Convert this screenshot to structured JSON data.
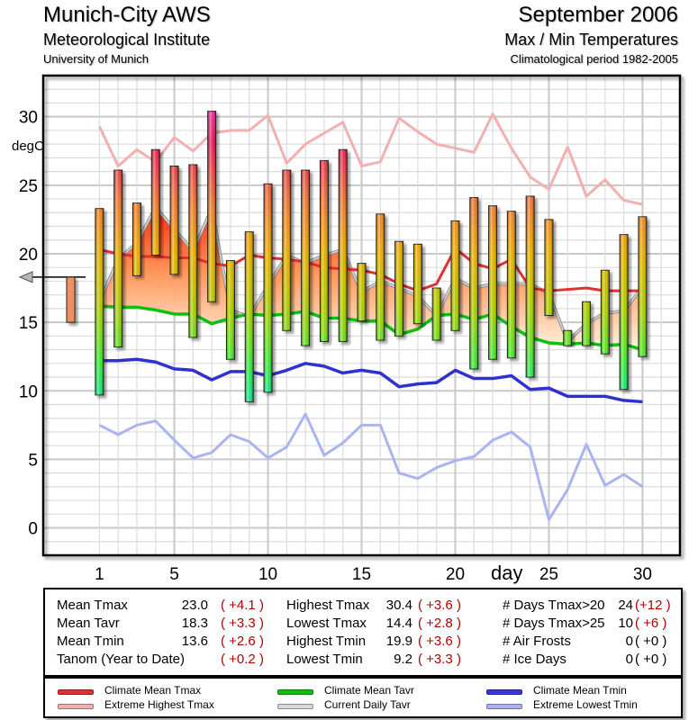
{
  "header": {
    "station": "Munich-City AWS",
    "institute": "Meteorological Institute",
    "university": "University of Munich",
    "period": "September 2006",
    "subject": "Max / Min Temperatures",
    "climate_period": "Climatological period 1982-2005"
  },
  "chart_data": {
    "type": "bar",
    "title": "Max / Min Temperatures",
    "xlabel": "day",
    "ylabel": "degC",
    "ylim": [
      -2,
      33
    ],
    "xlim": [
      -2,
      32
    ],
    "yticks": [
      "0",
      "5",
      "10",
      "15",
      "20",
      "25",
      "30"
    ],
    "xticks": [
      "1",
      "5",
      "10",
      "15",
      "20",
      "25",
      "30"
    ],
    "grid": true,
    "days": [
      1,
      2,
      3,
      4,
      5,
      6,
      7,
      8,
      9,
      10,
      11,
      12,
      13,
      14,
      15,
      16,
      17,
      18,
      19,
      20,
      21,
      22,
      23,
      24,
      25,
      26,
      27,
      28,
      29,
      30
    ],
    "tmax": [
      23.3,
      26.1,
      23.7,
      27.6,
      26.4,
      26.5,
      30.4,
      19.5,
      21.6,
      25.1,
      26.1,
      26.1,
      26.8,
      27.6,
      19.3,
      22.9,
      20.9,
      20.7,
      17.5,
      22.4,
      24.1,
      23.5,
      23.1,
      24.2,
      22.5,
      14.4,
      16.5,
      18.8,
      21.4,
      22.7
    ],
    "tmin": [
      9.7,
      13.2,
      18.4,
      19.9,
      18.5,
      13.9,
      16.5,
      12.3,
      9.2,
      9.9,
      14.4,
      13.3,
      13.6,
      13.6,
      15.1,
      13.7,
      14.0,
      14.9,
      13.7,
      14.4,
      11.6,
      12.3,
      12.4,
      11.0,
      15.5,
      13.3,
      13.3,
      12.7,
      10.1,
      12.5
    ],
    "series": [
      {
        "name": "Climate Mean Tmax",
        "color": "#e03030",
        "values": [
          20.3,
          20.0,
          19.8,
          19.8,
          19.7,
          19.7,
          19.3,
          19.1,
          19.9,
          19.7,
          19.6,
          19.4,
          19.0,
          18.9,
          18.8,
          18.5,
          17.8,
          17.3,
          17.8,
          20.4,
          19.3,
          18.9,
          19.6,
          17.5,
          17.3,
          17.4,
          17.5,
          17.3,
          17.3,
          17.3
        ]
      },
      {
        "name": "Extreme Highest Tmax",
        "color": "#f2b0b0",
        "values": [
          29.3,
          26.4,
          27.6,
          26.7,
          28.5,
          27.5,
          28.8,
          29.0,
          29.0,
          30.1,
          26.6,
          28.0,
          28.8,
          29.6,
          26.4,
          26.7,
          29.9,
          28.9,
          28.0,
          27.7,
          27.4,
          30.2,
          27.7,
          25.6,
          24.7,
          27.8,
          24.2,
          25.4,
          23.9,
          23.6
        ]
      },
      {
        "name": "Climate Mean Tavr",
        "color": "#10c010",
        "values": [
          16.2,
          16.1,
          16.1,
          15.9,
          15.6,
          15.6,
          14.9,
          15.3,
          15.6,
          15.5,
          15.6,
          15.8,
          15.3,
          15.3,
          15.1,
          15.1,
          14.1,
          14.5,
          15.5,
          15.6,
          15.2,
          15.6,
          14.7,
          13.9,
          13.5,
          13.4,
          13.5,
          13.3,
          13.4,
          13.0
        ]
      },
      {
        "name": "Current Daily Tavr",
        "color": "#d0d0d0",
        "values": [
          16.5,
          19.6,
          20.8,
          23.4,
          21.8,
          20.2,
          23.3,
          15.9,
          15.4,
          17.7,
          19.9,
          19.3,
          19.9,
          20.3,
          17.2,
          18.0,
          17.5,
          16.9,
          15.5,
          18.2,
          17.5,
          17.8,
          17.8,
          17.8,
          17.1,
          13.6,
          14.9,
          15.7,
          15.8,
          17.6
        ]
      },
      {
        "name": "Climate Mean Tmin",
        "color": "#3030d0",
        "values": [
          12.2,
          12.2,
          12.3,
          12.1,
          11.6,
          11.5,
          10.8,
          11.4,
          11.4,
          11.1,
          11.5,
          12.0,
          11.8,
          11.3,
          11.5,
          11.3,
          10.3,
          10.5,
          10.6,
          11.5,
          10.9,
          10.9,
          11.1,
          10.1,
          10.2,
          9.6,
          9.6,
          9.6,
          9.3,
          9.2
        ]
      },
      {
        "name": "Extreme Lowest Tmin",
        "color": "#aab4f0",
        "values": [
          7.5,
          6.8,
          7.5,
          7.8,
          6.4,
          5.1,
          5.5,
          6.8,
          6.3,
          5.1,
          5.9,
          8.3,
          5.3,
          6.2,
          7.5,
          7.5,
          4.0,
          3.6,
          4.4,
          4.9,
          5.2,
          6.4,
          7.0,
          5.9,
          0.6,
          2.8,
          6.1,
          3.1,
          3.9,
          3.0
        ]
      }
    ],
    "month_summary_bar": {
      "top": 18.3,
      "bottom": 15.0
    },
    "annotations": [
      "degC"
    ]
  },
  "stats": {
    "col1": [
      {
        "label": "Mean Tmax",
        "value": "23.0",
        "anom": "( +4.1 )"
      },
      {
        "label": "Mean Tavr",
        "value": "18.3",
        "anom": "( +3.3 )"
      },
      {
        "label": "Mean Tmin",
        "value": "13.6",
        "anom": "( +2.6 )"
      },
      {
        "label": "Tanom (Year to Date)",
        "value": "",
        "anom": "( +0.2 )"
      }
    ],
    "col2": [
      {
        "label": "Highest Tmax",
        "value": "30.4",
        "anom": "( +3.6 )"
      },
      {
        "label": "Lowest Tmax",
        "value": "14.4",
        "anom": "( +2.8 )"
      },
      {
        "label": "Highest Tmin",
        "value": "19.9",
        "anom": "( +3.6 )"
      },
      {
        "label": "Lowest Tmin",
        "value": "9.2",
        "anom": "( +3.3 )"
      }
    ],
    "col3": [
      {
        "label": "# Days Tmax>20",
        "value": "24",
        "anom": "(+12 )"
      },
      {
        "label": "# Days Tmax>25",
        "value": "10",
        "anom": "( +6 )"
      },
      {
        "label": "# Air Frosts",
        "value": "0",
        "anom": "( +0 )"
      },
      {
        "label": "# Ice Days",
        "value": "0",
        "anom": "( +0 )"
      }
    ],
    "anom_color": "#b00000",
    "neutral_color": "#000000"
  },
  "legend": [
    {
      "label": "Climate Mean Tmax",
      "color": "#e03030"
    },
    {
      "label": "Extreme Highest Tmax",
      "color": "#f2b0b0"
    },
    {
      "label": "Climate Mean Tavr",
      "color": "#10c010"
    },
    {
      "label": "Current Daily Tavr",
      "color": "#d8d8d8"
    },
    {
      "label": "Climate Mean Tmin",
      "color": "#3838d8"
    },
    {
      "label": "Extreme Lowest Tmin",
      "color": "#aab4f0"
    }
  ]
}
